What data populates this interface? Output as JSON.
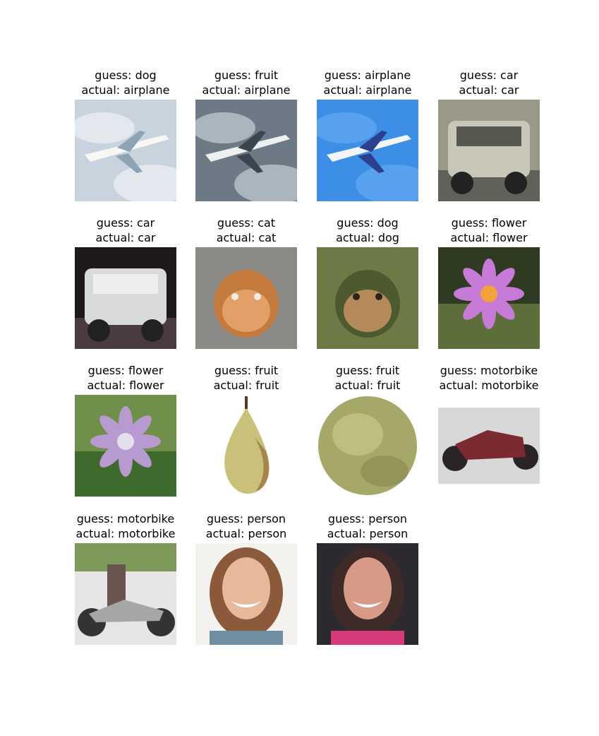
{
  "figure": {
    "cells": [
      {
        "guess": "guess: dog",
        "actual": "actual: airplane",
        "image": "airplane-clouds-photo",
        "colors": [
          "#c9d3dd",
          "#e9eef2",
          "#8fa3b6",
          "#f7f7f4"
        ]
      },
      {
        "guess": "guess: fruit",
        "actual": "actual: airplane",
        "image": "airplane-window-photo",
        "colors": [
          "#6d7a86",
          "#b9c4cc",
          "#3b4550",
          "#eef0f0"
        ]
      },
      {
        "guess": "guess: airplane",
        "actual": "actual: airplane",
        "image": "airplane-blue-sky-photo",
        "colors": [
          "#3d8ee6",
          "#5ea6f0",
          "#2d3f8f",
          "#f3f4f8"
        ]
      },
      {
        "guess": "guess: car",
        "actual": "actual: car",
        "image": "military-truck-photo",
        "colors": [
          "#9a9889",
          "#5f6258",
          "#c9c7b8",
          "#3a3b35"
        ]
      },
      {
        "guess": "guess: car",
        "actual": "actual: car",
        "image": "silver-car-photo",
        "colors": [
          "#1e1a1c",
          "#4a3c3e",
          "#d9dadc",
          "#f2f2f3"
        ]
      },
      {
        "guess": "guess: cat",
        "actual": "actual: cat",
        "image": "orange-cat-photo",
        "colors": [
          "#8c8a86",
          "#c47a3c",
          "#e2a068",
          "#f0ece4"
        ]
      },
      {
        "guess": "guess: dog",
        "actual": "actual: dog",
        "image": "dog-on-grass-photo",
        "colors": [
          "#6e7a45",
          "#4d5a30",
          "#b58a5a",
          "#2b2218"
        ]
      },
      {
        "guess": "guess: flower",
        "actual": "actual: flower",
        "image": "lotus-flower-photo",
        "colors": [
          "#2f3a22",
          "#5c6f3a",
          "#c77ad8",
          "#f2a23a"
        ]
      },
      {
        "guess": "guess: flower",
        "actual": "actual: flower",
        "image": "water-hyacinth-photo",
        "colors": [
          "#6f8f4a",
          "#3f6a2e",
          "#b79ad0",
          "#e3e0ec"
        ]
      },
      {
        "guess": "guess: fruit",
        "actual": "actual: fruit",
        "image": "pear-photo",
        "colors": [
          "#ffffff",
          "#c9c07a",
          "#9a6a3a",
          "#5a3a20"
        ]
      },
      {
        "guess": "guess: fruit",
        "actual": "actual: fruit",
        "image": "green-fruit-photo",
        "colors": [
          "#ffffff",
          "#a6a86a",
          "#c8c98c",
          "#7d7f48"
        ]
      },
      {
        "guess": "guess: motorbike",
        "actual": "actual: motorbike",
        "image": "motorbike-showroom-photo",
        "colors": [
          "#ffffff",
          "#d8d8d8",
          "#2a2426",
          "#7a2a30"
        ]
      },
      {
        "guess": "guess: motorbike",
        "actual": "actual: motorbike",
        "image": "motorbike-rider-photo",
        "colors": [
          "#7d9a5a",
          "#a6a6a6",
          "#6a5550",
          "#e6e6e6"
        ]
      },
      {
        "guess": "guess: person",
        "actual": "actual: person",
        "image": "smiling-woman-photo",
        "colors": [
          "#f4f2ee",
          "#8a5a3a",
          "#e8b89a",
          "#6e8fa0"
        ]
      },
      {
        "guess": "guess: person",
        "actual": "actual: person",
        "image": "woman-selfie-photo",
        "colors": [
          "#2c2a2e",
          "#3e2a26",
          "#d79a86",
          "#d63a7a"
        ]
      }
    ]
  }
}
